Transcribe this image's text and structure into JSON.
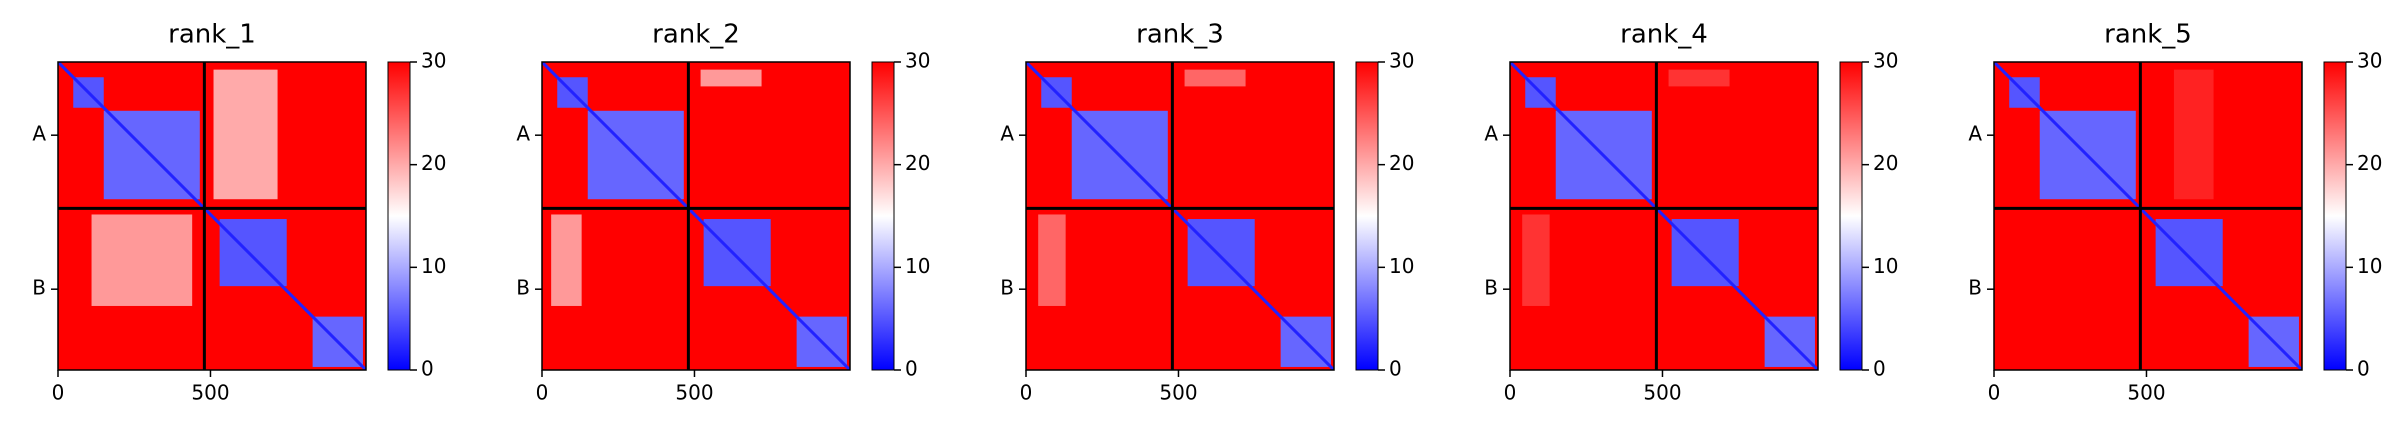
{
  "chart_data": [
    {
      "type": "heatmap",
      "title": "rank_1",
      "xlim": [
        0,
        1010
      ],
      "ylim": [
        1010,
        0
      ],
      "xticks": [
        0,
        500
      ],
      "yticks": [
        {
          "value": 240,
          "label": "A"
        },
        {
          "value": 745,
          "label": "B"
        }
      ],
      "zlim": [
        0,
        30
      ],
      "zticks": [
        0,
        10,
        20,
        30
      ],
      "colormap": [
        "#0000ff",
        "#ffffff",
        "#ff0000"
      ],
      "background_value": 30,
      "diagonal_value": 2,
      "chain_breaks": [
        480
      ],
      "regions": [
        {
          "x": [
            510,
            720
          ],
          "y": [
            25,
            450
          ],
          "value": 20
        },
        {
          "x": [
            110,
            440
          ],
          "y": [
            500,
            800
          ],
          "value": 21
        },
        {
          "x": [
            50,
            150
          ],
          "y": [
            50,
            150
          ],
          "value": 5
        },
        {
          "x": [
            150,
            465
          ],
          "y": [
            160,
            450
          ],
          "value": 6
        },
        {
          "x": [
            530,
            750
          ],
          "y": [
            515,
            735
          ],
          "value": 5
        },
        {
          "x": [
            835,
            1000
          ],
          "y": [
            835,
            1000
          ],
          "value": 6
        }
      ]
    },
    {
      "type": "heatmap",
      "title": "rank_2",
      "xlim": [
        0,
        1010
      ],
      "ylim": [
        1010,
        0
      ],
      "xticks": [
        0,
        500
      ],
      "yticks": [
        {
          "value": 240,
          "label": "A"
        },
        {
          "value": 745,
          "label": "B"
        }
      ],
      "zlim": [
        0,
        30
      ],
      "zticks": [
        0,
        10,
        20,
        30
      ],
      "colormap": [
        "#0000ff",
        "#ffffff",
        "#ff0000"
      ],
      "background_value": 30,
      "diagonal_value": 2,
      "chain_breaks": [
        480
      ],
      "regions": [
        {
          "x": [
            520,
            720
          ],
          "y": [
            25,
            80
          ],
          "value": 21
        },
        {
          "x": [
            30,
            130
          ],
          "y": [
            500,
            800
          ],
          "value": 21
        },
        {
          "x": [
            50,
            150
          ],
          "y": [
            50,
            150
          ],
          "value": 5
        },
        {
          "x": [
            150,
            465
          ],
          "y": [
            160,
            450
          ],
          "value": 6
        },
        {
          "x": [
            530,
            750
          ],
          "y": [
            515,
            735
          ],
          "value": 5
        },
        {
          "x": [
            835,
            1000
          ],
          "y": [
            835,
            1000
          ],
          "value": 6
        }
      ]
    },
    {
      "type": "heatmap",
      "title": "rank_3",
      "xlim": [
        0,
        1010
      ],
      "ylim": [
        1010,
        0
      ],
      "xticks": [
        0,
        500
      ],
      "yticks": [
        {
          "value": 240,
          "label": "A"
        },
        {
          "value": 745,
          "label": "B"
        }
      ],
      "zlim": [
        0,
        30
      ],
      "zticks": [
        0,
        10,
        20,
        30
      ],
      "colormap": [
        "#0000ff",
        "#ffffff",
        "#ff0000"
      ],
      "background_value": 30,
      "diagonal_value": 2,
      "chain_breaks": [
        480
      ],
      "regions": [
        {
          "x": [
            520,
            720
          ],
          "y": [
            25,
            80
          ],
          "value": 24
        },
        {
          "x": [
            40,
            130
          ],
          "y": [
            500,
            800
          ],
          "value": 24
        },
        {
          "x": [
            50,
            150
          ],
          "y": [
            50,
            150
          ],
          "value": 5
        },
        {
          "x": [
            150,
            465
          ],
          "y": [
            160,
            450
          ],
          "value": 6
        },
        {
          "x": [
            530,
            750
          ],
          "y": [
            515,
            735
          ],
          "value": 5
        },
        {
          "x": [
            835,
            1000
          ],
          "y": [
            835,
            1000
          ],
          "value": 6
        }
      ]
    },
    {
      "type": "heatmap",
      "title": "rank_4",
      "xlim": [
        0,
        1010
      ],
      "ylim": [
        1010,
        0
      ],
      "xticks": [
        0,
        500
      ],
      "yticks": [
        {
          "value": 240,
          "label": "A"
        },
        {
          "value": 745,
          "label": "B"
        }
      ],
      "zlim": [
        0,
        30
      ],
      "zticks": [
        0,
        10,
        20,
        30
      ],
      "colormap": [
        "#0000ff",
        "#ffffff",
        "#ff0000"
      ],
      "background_value": 30,
      "diagonal_value": 2,
      "chain_breaks": [
        480
      ],
      "regions": [
        {
          "x": [
            520,
            720
          ],
          "y": [
            25,
            80
          ],
          "value": 27
        },
        {
          "x": [
            40,
            130
          ],
          "y": [
            500,
            800
          ],
          "value": 27
        },
        {
          "x": [
            50,
            150
          ],
          "y": [
            50,
            150
          ],
          "value": 5
        },
        {
          "x": [
            150,
            465
          ],
          "y": [
            160,
            450
          ],
          "value": 6
        },
        {
          "x": [
            530,
            750
          ],
          "y": [
            515,
            735
          ],
          "value": 5
        },
        {
          "x": [
            835,
            1000
          ],
          "y": [
            835,
            1000
          ],
          "value": 6
        }
      ]
    },
    {
      "type": "heatmap",
      "title": "rank_5",
      "xlim": [
        0,
        1010
      ],
      "ylim": [
        1010,
        0
      ],
      "xticks": [
        0,
        500
      ],
      "yticks": [
        {
          "value": 240,
          "label": "A"
        },
        {
          "value": 745,
          "label": "B"
        }
      ],
      "zlim": [
        0,
        30
      ],
      "zticks": [
        0,
        10,
        20,
        30
      ],
      "colormap": [
        "#0000ff",
        "#ffffff",
        "#ff0000"
      ],
      "background_value": 30,
      "diagonal_value": 2,
      "chain_breaks": [
        480
      ],
      "regions": [
        {
          "x": [
            590,
            720
          ],
          "y": [
            25,
            450
          ],
          "value": 28
        },
        {
          "x": [
            50,
            150
          ],
          "y": [
            50,
            150
          ],
          "value": 5
        },
        {
          "x": [
            150,
            465
          ],
          "y": [
            160,
            450
          ],
          "value": 6
        },
        {
          "x": [
            530,
            750
          ],
          "y": [
            515,
            735
          ],
          "value": 5
        },
        {
          "x": [
            835,
            1000
          ],
          "y": [
            835,
            1000
          ],
          "value": 6
        }
      ]
    }
  ]
}
